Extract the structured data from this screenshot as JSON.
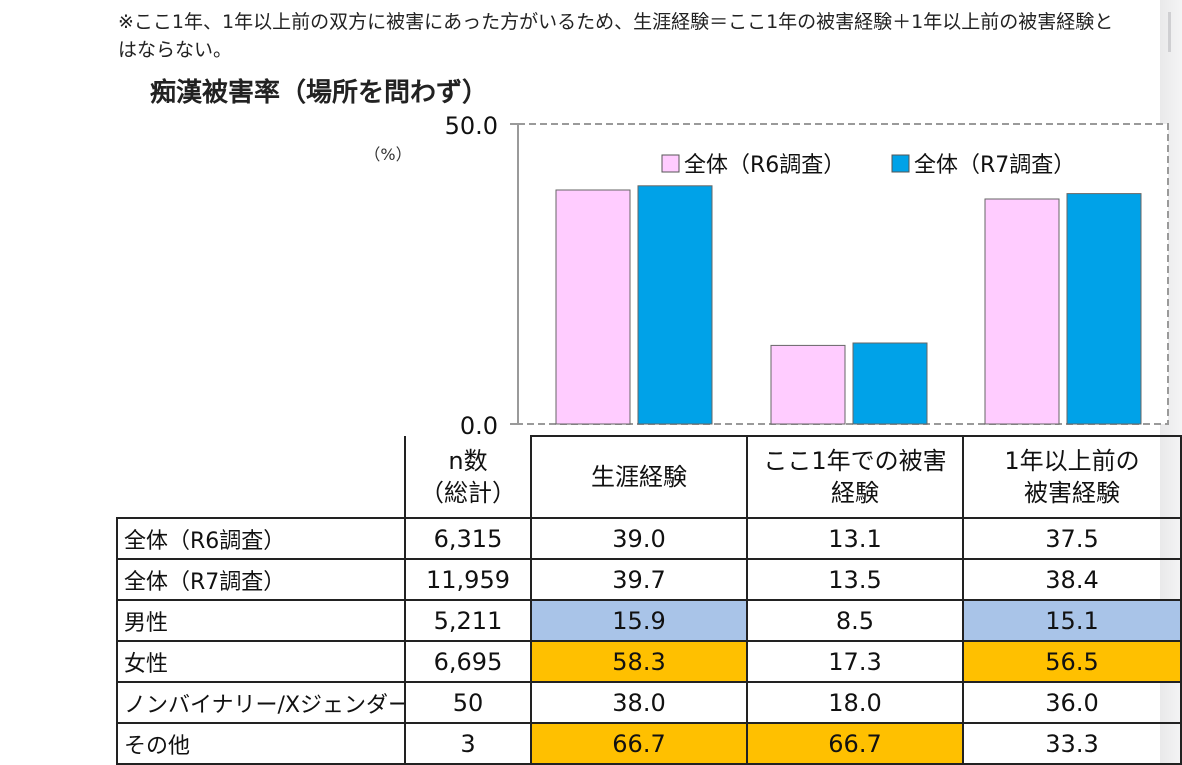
{
  "note": "※ここ1年、1年以上前の双方に被害にあった方がいるため、生涯経験＝ここ1年の被害経験＋1年以上前の被害経験とはならない。",
  "chart_title": "痴漢被害率（場所を問わず）",
  "chart_data": {
    "type": "bar",
    "title": "痴漢被害率（場所を問わず）",
    "ylabel": "（%）",
    "ylim": [
      0,
      50
    ],
    "yticks": [
      "0.0",
      "50.0"
    ],
    "grid": false,
    "legend_position": "top-right",
    "categories": [
      "生涯経験",
      "ここ1年での被害経験",
      "1年以上前の被害経験"
    ],
    "series": [
      {
        "name": "全体（R6調査）",
        "color": "#ffccff",
        "values": [
          39.0,
          13.1,
          37.5
        ]
      },
      {
        "name": "全体（R7調査）",
        "color": "#00a2e8",
        "values": [
          39.7,
          13.5,
          38.4
        ]
      }
    ]
  },
  "table": {
    "n_header": "n数\n（総計）",
    "columns": [
      "生涯経験",
      "ここ1年での被害\n経験",
      "1年以上前の\n被害経験"
    ],
    "rows": [
      {
        "label": "全体（R6調査）",
        "n": "6,315",
        "values": [
          "39.0",
          "13.1",
          "37.5"
        ],
        "highlight": [
          "",
          "",
          ""
        ]
      },
      {
        "label": "全体（R7調査）",
        "n": "11,959",
        "values": [
          "39.7",
          "13.5",
          "38.4"
        ],
        "highlight": [
          "",
          "",
          ""
        ]
      },
      {
        "label": "男性",
        "n": "5,211",
        "values": [
          "15.9",
          "8.5",
          "15.1"
        ],
        "highlight": [
          "blue",
          "",
          "blue"
        ]
      },
      {
        "label": "女性",
        "n": "6,695",
        "values": [
          "58.3",
          "17.3",
          "56.5"
        ],
        "highlight": [
          "orange",
          "",
          "orange"
        ]
      },
      {
        "label": "ノンバイナリー/Xジェンダー",
        "n": "50",
        "values": [
          "38.0",
          "18.0",
          "36.0"
        ],
        "highlight": [
          "",
          "",
          ""
        ]
      },
      {
        "label": "その他",
        "n": "3",
        "values": [
          "66.7",
          "66.7",
          "33.3"
        ],
        "highlight": [
          "orange",
          "orange",
          ""
        ]
      }
    ]
  },
  "colors": {
    "highlight_blue": "#a9c4e8",
    "highlight_orange": "#ffc000"
  }
}
